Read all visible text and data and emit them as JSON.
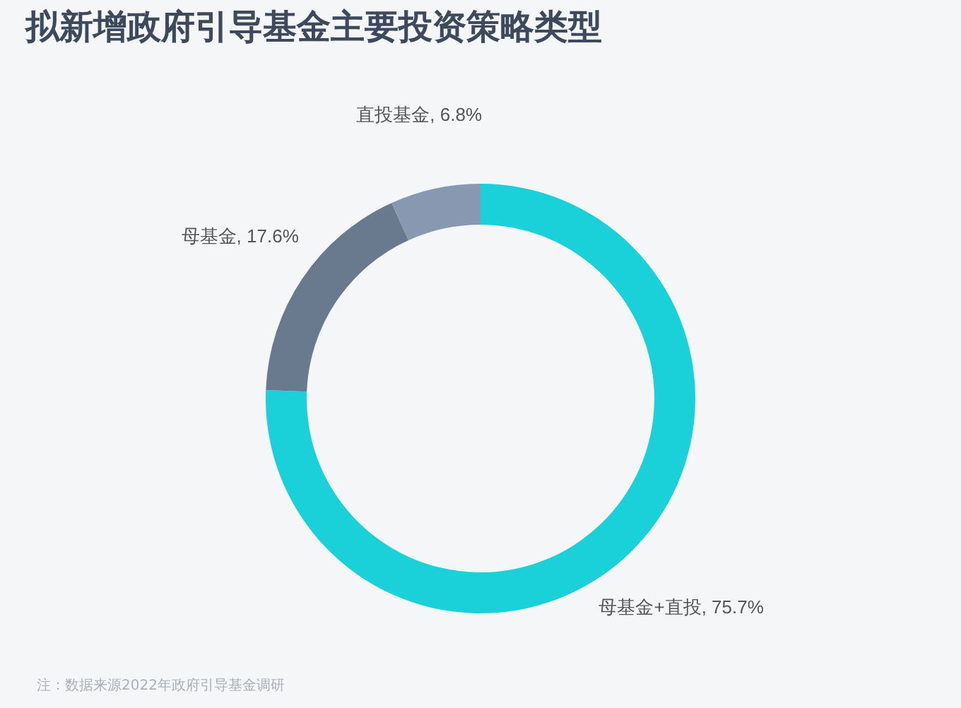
{
  "chart_data": {
    "type": "donut",
    "title": "拟新增政府引导基金主要投资策略类型",
    "categories": [
      "母基金+直投",
      "母基金",
      "直投基金"
    ],
    "values": [
      75.7,
      17.6,
      6.8
    ],
    "colors": [
      "#1ad1d9",
      "#6a7a8e",
      "#8798b0"
    ],
    "value_labels": [
      ", 75.7%",
      ", 17.6%",
      ", 6.8%"
    ],
    "legend": false,
    "annotations": [
      "注：数据来源2022年政府引导基金调研"
    ]
  }
}
